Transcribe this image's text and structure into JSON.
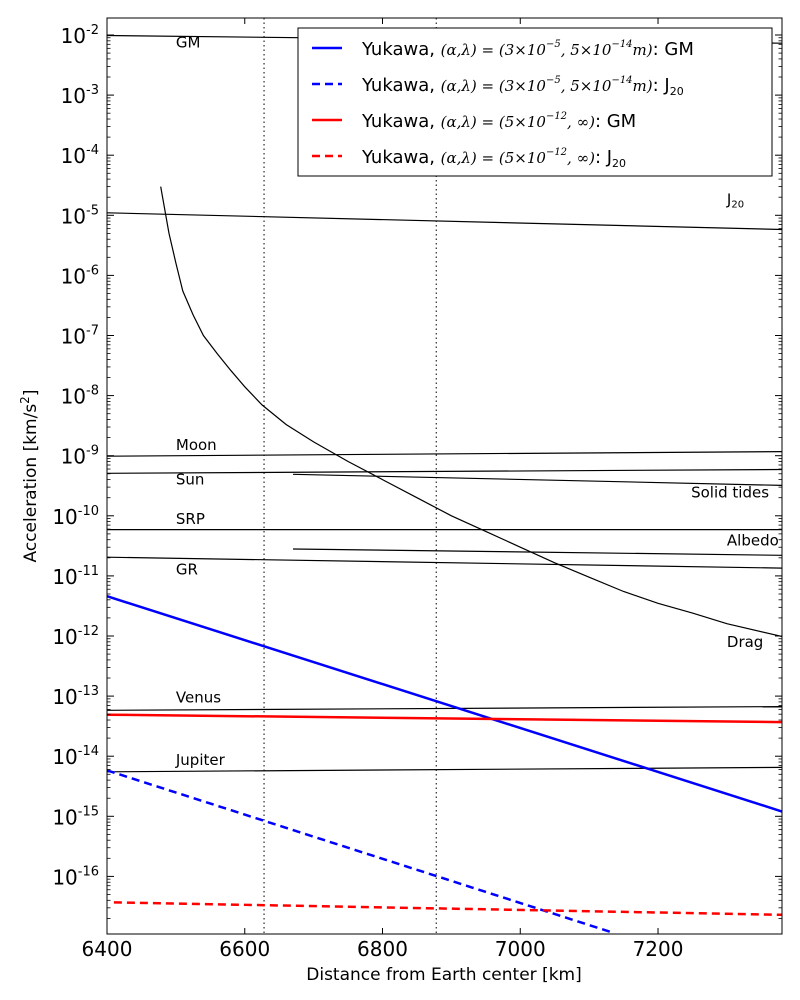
{
  "chart_data": {
    "type": "line",
    "xlabel": "Distance from Earth center [km]",
    "ylabel": "Acceleration [km/s",
    "ylabel_sup": "2",
    "ylabel_suffix": "]",
    "xlim": [
      6400,
      7380
    ],
    "ylim": [
      1.2e-17,
      0.02
    ],
    "y_scale": "log",
    "x_ticks": [
      6400,
      6600,
      6800,
      7000,
      7200
    ],
    "y_ticks": [
      {
        "value": 0.01,
        "base": "10",
        "exp": "-2"
      },
      {
        "value": 0.001,
        "base": "10",
        "exp": "-3"
      },
      {
        "value": 0.0001,
        "base": "10",
        "exp": "-4"
      },
      {
        "value": 1e-05,
        "base": "10",
        "exp": "-5"
      },
      {
        "value": 1e-06,
        "base": "10",
        "exp": "-6"
      },
      {
        "value": 1e-07,
        "base": "10",
        "exp": "-7"
      },
      {
        "value": 1e-08,
        "base": "10",
        "exp": "-8"
      },
      {
        "value": 1e-09,
        "base": "10",
        "exp": "-9"
      },
      {
        "value": 1e-10,
        "base": "10",
        "exp": "-10"
      },
      {
        "value": 1e-11,
        "base": "10",
        "exp": "-11"
      },
      {
        "value": 1e-12,
        "base": "10",
        "exp": "-12"
      },
      {
        "value": 1e-13,
        "base": "10",
        "exp": "-13"
      },
      {
        "value": 1e-14,
        "base": "10",
        "exp": "-14"
      },
      {
        "value": 1e-15,
        "base": "10",
        "exp": "-15"
      },
      {
        "value": 1e-16,
        "base": "10",
        "exp": "-16"
      }
    ],
    "vlines": [
      6628,
      6878
    ],
    "grid": false,
    "legend_position": "top-right",
    "series": [
      {
        "name": "GM",
        "label_at": [
          6500,
          0.0062
        ],
        "points": [
          [
            6400,
            0.0098
          ],
          [
            7380,
            0.0073
          ]
        ]
      },
      {
        "name": "J20",
        "label_main": "J",
        "label_sub": "20",
        "label_at": [
          7300,
          1.5e-05
        ],
        "points": [
          [
            6400,
            1.1e-05
          ],
          [
            7380,
            5.8e-06
          ]
        ]
      },
      {
        "name": "Drag",
        "label_at": [
          7300,
          6.5e-13
        ],
        "points": [
          [
            6478,
            3e-05
          ],
          [
            6490,
            5e-06
          ],
          [
            6500,
            1.6e-06
          ],
          [
            6510,
            5.5e-07
          ],
          [
            6525,
            2.2e-07
          ],
          [
            6540,
            1e-07
          ],
          [
            6560,
            5e-08
          ],
          [
            6580,
            2.6e-08
          ],
          [
            6600,
            1.4e-08
          ],
          [
            6625,
            7e-09
          ],
          [
            6660,
            3.3e-09
          ],
          [
            6700,
            1.7e-09
          ],
          [
            6750,
            8e-10
          ],
          [
            6800,
            4e-10
          ],
          [
            6850,
            2e-10
          ],
          [
            6900,
            1e-10
          ],
          [
            6950,
            5.5e-11
          ],
          [
            7000,
            3e-11
          ],
          [
            7050,
            1.65e-11
          ],
          [
            7100,
            9.5e-12
          ],
          [
            7150,
            5.5e-12
          ],
          [
            7200,
            3.5e-12
          ],
          [
            7250,
            2.4e-12
          ],
          [
            7300,
            1.6e-12
          ],
          [
            7380,
            9.8e-13
          ]
        ]
      },
      {
        "name": "Moon",
        "label_at": [
          6500,
          1.25e-09
        ],
        "points": [
          [
            6400,
            9.8e-10
          ],
          [
            7380,
            1.17e-09
          ]
        ]
      },
      {
        "name": "Sun",
        "label_at": [
          6500,
          3.3e-10
        ],
        "points": [
          [
            6400,
            5.1e-10
          ],
          [
            7380,
            5.9e-10
          ]
        ]
      },
      {
        "name": "Solid tides",
        "label_at": [
          7248,
          2e-10
        ],
        "points": [
          [
            6670,
            4.9e-10
          ],
          [
            7380,
            3.2e-10
          ]
        ]
      },
      {
        "name": "SRP",
        "label_at": [
          6500,
          7.3e-11
        ],
        "points": [
          [
            6400,
            5.9e-11
          ],
          [
            7380,
            5.9e-11
          ]
        ]
      },
      {
        "name": "Albedo",
        "label_at": [
          7300,
          3.2e-11
        ],
        "points": [
          [
            6670,
            2.8e-11
          ],
          [
            7380,
            2.2e-11
          ]
        ]
      },
      {
        "name": "GR",
        "label_at": [
          6500,
          1.05e-11
        ],
        "points": [
          [
            6400,
            2.05e-11
          ],
          [
            7380,
            1.35e-11
          ]
        ]
      },
      {
        "name": "Venus",
        "label_at": [
          6500,
          7.8e-14
        ],
        "points": [
          [
            6400,
            5.8e-14
          ],
          [
            7380,
            6.7e-14
          ]
        ]
      },
      {
        "name": "Jupiter",
        "label_at": [
          6500,
          7.2e-15
        ],
        "points": [
          [
            6400,
            5.5e-15
          ],
          [
            7380,
            6.5e-15
          ]
        ]
      },
      {
        "name": "Yukawa GM (3e-5, 5e-14 m)",
        "color": "#0000ff",
        "dash": false,
        "points": [
          [
            6400,
            4.6e-12
          ],
          [
            7380,
            1.2e-15
          ]
        ]
      },
      {
        "name": "Yukawa J20 (3e-5, 5e-14 m)",
        "color": "#0000ff",
        "dash": true,
        "points": [
          [
            6400,
            5.8e-15
          ],
          [
            7130,
            1.2e-17
          ]
        ]
      },
      {
        "name": "Yukawa GM (5e-12, inf)",
        "color": "#ff0000",
        "dash": false,
        "points": [
          [
            6400,
            4.9e-14
          ],
          [
            7380,
            3.7e-14
          ]
        ]
      },
      {
        "name": "Yukawa J20 (5e-12, inf)",
        "color": "#ff0000",
        "dash": true,
        "points": [
          [
            6410,
            3.7e-17
          ],
          [
            7380,
            2.3e-17
          ]
        ]
      }
    ],
    "legend": [
      {
        "prefix": "Yukawa, ",
        "params": "(α,λ) = (3×10",
        "exp1": "−5",
        "mid": ", 5×10",
        "exp2": "−14",
        "unit": "m)",
        "suffix": ": GM",
        "suffix_sub": "",
        "color": "#0000ff",
        "dash": false
      },
      {
        "prefix": "Yukawa, ",
        "params": "(α,λ) = (3×10",
        "exp1": "−5",
        "mid": ", 5×10",
        "exp2": "−14",
        "unit": "m)",
        "suffix": ": J",
        "suffix_sub": "20",
        "color": "#0000ff",
        "dash": true
      },
      {
        "prefix": "Yukawa, ",
        "params": "(α,λ) = (5×10",
        "exp1": "−12",
        "mid": ", ∞)",
        "exp2": "",
        "unit": "",
        "suffix": ": GM",
        "suffix_sub": "",
        "color": "#ff0000",
        "dash": false
      },
      {
        "prefix": "Yukawa, ",
        "params": "(α,λ) = (5×10",
        "exp1": "−12",
        "mid": ", ∞)",
        "exp2": "",
        "unit": "",
        "suffix": ": J",
        "suffix_sub": "20",
        "color": "#ff0000",
        "dash": true
      }
    ]
  }
}
